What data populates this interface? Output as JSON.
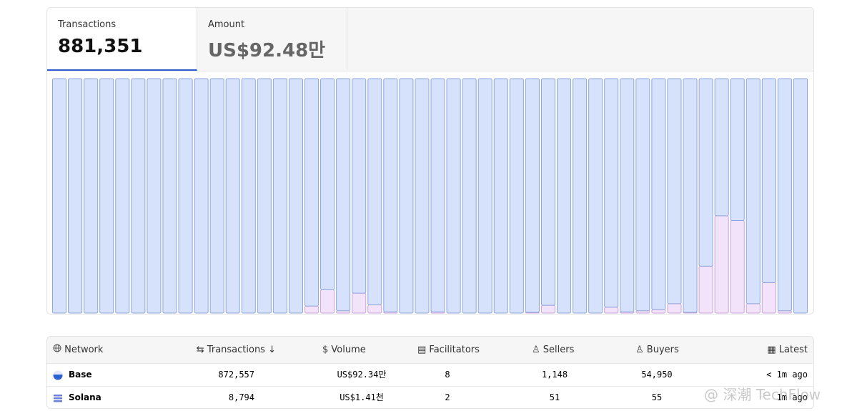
{
  "tabs": [
    {
      "label": "Transactions",
      "value": "881,351"
    },
    {
      "label": "Amount",
      "value": "US$92.48만"
    }
  ],
  "chart_data": {
    "type": "stacked_bar",
    "ylim": [
      0,
      100
    ],
    "series": [
      {
        "color": "#f3e3fa",
        "values": [
          0,
          0,
          0,
          0,
          0,
          0,
          0,
          0,
          0,
          0,
          0,
          0,
          0,
          0,
          0,
          0,
          3,
          10,
          1,
          8.5,
          3.5,
          0.5,
          0,
          0,
          0.5,
          0,
          0,
          0,
          0,
          0,
          0.3,
          3.3,
          0,
          0,
          0,
          2.5,
          0.5,
          1,
          1.5,
          4,
          0.3,
          20,
          41.5,
          39.5,
          4,
          13,
          1,
          0
        ]
      },
      {
        "color": "#d6e2fb",
        "values": [
          100,
          100,
          100,
          100,
          100,
          100,
          100,
          100,
          100,
          100,
          100,
          100,
          100,
          100,
          100,
          100,
          97,
          90,
          99,
          91.5,
          96.5,
          99.5,
          100,
          100,
          99.5,
          100,
          100,
          100,
          100,
          100,
          99.7,
          96.7,
          100,
          100,
          100,
          97.5,
          99.5,
          99,
          98.5,
          96,
          99.7,
          80,
          58.5,
          60.5,
          96,
          87,
          99,
          100
        ]
      }
    ]
  },
  "table": {
    "headers": [
      "Network",
      "Transactions",
      "Volume",
      "Facilitators",
      "Sellers",
      "Buyers",
      "Latest"
    ],
    "rows": [
      [
        "Base",
        "872,557",
        "US$92.34만",
        "8",
        "1,148",
        "54,950",
        "< 1m ago"
      ],
      [
        "Solana",
        "8,794",
        "US$1.41천",
        "2",
        "51",
        "55",
        "1m ago"
      ]
    ]
  },
  "watermark": "@ 深潮 TechFlow"
}
